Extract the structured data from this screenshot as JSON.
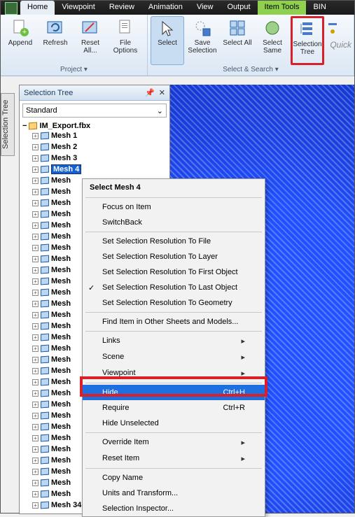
{
  "colors": {
    "highlight_red": "#d8202a",
    "selection_blue": "#1e6fe0",
    "ribbon_grad_top": "#f6f9fd",
    "ribbon_grad_bot": "#dbe7f4",
    "item_tools_green": "#8fd14f"
  },
  "tabs": {
    "home": "Home",
    "viewpoint": "Viewpoint",
    "review": "Review",
    "animation": "Animation",
    "view": "View",
    "output": "Output",
    "item_tools": "Item Tools",
    "bim": "BIN"
  },
  "ribbon": {
    "project_group": "Project ▾",
    "select_group": "Select & Search ▾",
    "append": "Append",
    "refresh": "Refresh",
    "reset_all": "Reset All...",
    "file_options": "File Options",
    "select": "Select",
    "save_selection": "Save Selection",
    "select_all": "Select All",
    "select_same": "Select Same",
    "selection_tree": "Selection Tree",
    "quick": "Quick"
  },
  "side_tab": "Selection Tree",
  "panel": {
    "title": "Selection Tree",
    "dropdown": "Standard",
    "root": "IM_Export.fbx",
    "items": [
      "Mesh 1",
      "Mesh 2",
      "Mesh 3",
      "Mesh 4",
      "Mesh 5",
      "Mesh 6",
      "Mesh 7",
      "Mesh 8",
      "Mesh 9",
      "Mesh 10",
      "Mesh 11",
      "Mesh 12",
      "Mesh 13",
      "Mesh 14",
      "Mesh 15",
      "Mesh 16",
      "Mesh 17",
      "Mesh 18",
      "Mesh 19",
      "Mesh 20",
      "Mesh 21",
      "Mesh 22",
      "Mesh 23",
      "Mesh 24",
      "Mesh 25",
      "Mesh 26",
      "Mesh 27",
      "Mesh 28",
      "Mesh 29",
      "Mesh 30",
      "Mesh 31",
      "Mesh 32",
      "Mesh 33",
      "Mesh 34"
    ],
    "selected_index": 3
  },
  "ctx": {
    "header": "Select Mesh 4",
    "focus": "Focus on Item",
    "switchback": "SwitchBack",
    "res_file": "Set Selection Resolution To File",
    "res_layer": "Set Selection Resolution To Layer",
    "res_first": "Set Selection Resolution To First Object",
    "res_last": "Set Selection Resolution To Last Object",
    "res_geom": "Set Selection Resolution To Geometry",
    "find": "Find Item in Other Sheets and Models...",
    "links": "Links",
    "scene": "Scene",
    "viewpoint": "Viewpoint",
    "hide": "Hide",
    "hide_short": "Ctrl+H",
    "require": "Require",
    "require_short": "Ctrl+R",
    "hide_unsel": "Hide Unselected",
    "override": "Override Item",
    "reset": "Reset Item",
    "copy_name": "Copy Name",
    "units": "Units and Transform...",
    "inspector": "Selection Inspector..."
  }
}
